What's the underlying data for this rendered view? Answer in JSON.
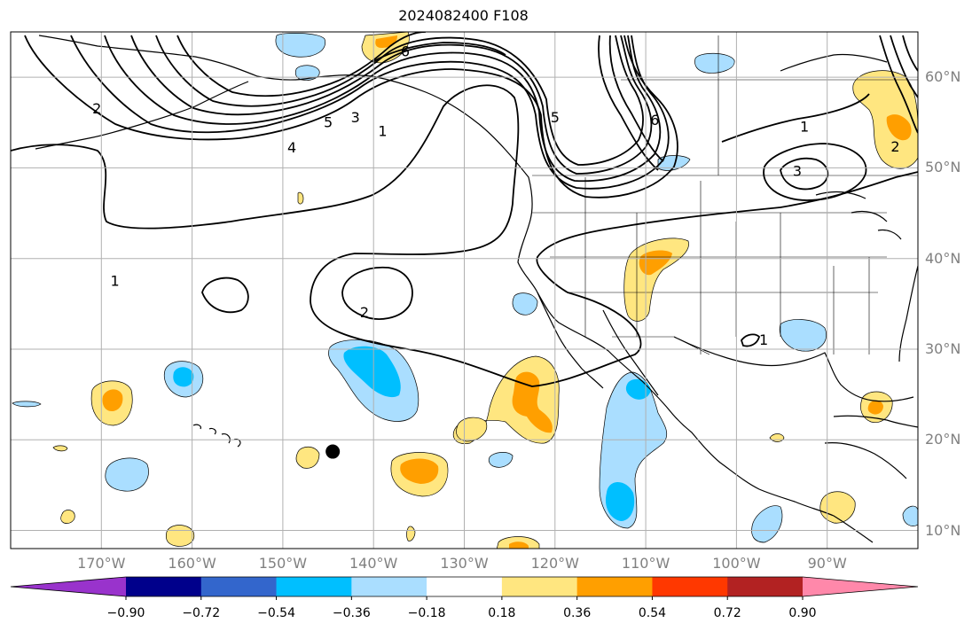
{
  "title": "2024082400 F108",
  "map_data": {
    "lon_range": [
      -180,
      -80
    ],
    "lat_range": [
      8,
      65
    ],
    "lat_ticks": [
      {
        "value": 60,
        "label": "60°N"
      },
      {
        "value": 50,
        "label": "50°N"
      },
      {
        "value": 40,
        "label": "40°N"
      },
      {
        "value": 30,
        "label": "30°N"
      },
      {
        "value": 20,
        "label": "20°N"
      },
      {
        "value": 10,
        "label": "10°N"
      }
    ],
    "lon_ticks": [
      {
        "value": -170,
        "label": "170°W"
      },
      {
        "value": -160,
        "label": "160°W"
      },
      {
        "value": -150,
        "label": "150°W"
      },
      {
        "value": -140,
        "label": "140°W"
      },
      {
        "value": -130,
        "label": "130°W"
      },
      {
        "value": -120,
        "label": "120°W"
      },
      {
        "value": -110,
        "label": "110°W"
      },
      {
        "value": -100,
        "label": "100°W"
      },
      {
        "value": -90,
        "label": "90°W"
      }
    ],
    "contour_labels": [
      {
        "text": "2",
        "lon": -170.5,
        "lat": 56.5
      },
      {
        "text": "4",
        "lon": -149,
        "lat": 52.2
      },
      {
        "text": "5",
        "lon": -145,
        "lat": 55
      },
      {
        "text": "3",
        "lon": -142,
        "lat": 55.5
      },
      {
        "text": "1",
        "lon": -139,
        "lat": 54
      },
      {
        "text": "6",
        "lon": -136.5,
        "lat": 62.8
      },
      {
        "text": "5",
        "lon": -120,
        "lat": 55.5
      },
      {
        "text": "6",
        "lon": -109,
        "lat": 55.2
      },
      {
        "text": "1",
        "lon": -92.5,
        "lat": 54.5
      },
      {
        "text": "2",
        "lon": -82.5,
        "lat": 52.3
      },
      {
        "text": "3",
        "lon": -93.3,
        "lat": 49.6
      },
      {
        "text": "1",
        "lon": -168.5,
        "lat": 37.5
      },
      {
        "text": "2",
        "lon": -141,
        "lat": 34
      },
      {
        "text": "1",
        "lon": -97,
        "lat": 31
      }
    ],
    "marker": {
      "lon": -144.5,
      "lat": 18.7,
      "color": "#000000"
    }
  },
  "colorbar": {
    "colors": [
      "#9933cc",
      "#00008b",
      "#3366cc",
      "#00bfff",
      "#aadeff",
      "#ffffff",
      "#ffe680",
      "#ff9f00",
      "#ff3800",
      "#b22222",
      "#ff88aa"
    ],
    "tick_labels": [
      "−0.90",
      "−0.72",
      "−0.54",
      "−0.36",
      "−0.18",
      "0.18",
      "0.36",
      "0.54",
      "0.72",
      "0.90"
    ],
    "levels": [
      -0.9,
      -0.72,
      -0.54,
      -0.36,
      -0.18,
      0.18,
      0.36,
      0.54,
      0.72,
      0.9
    ]
  }
}
